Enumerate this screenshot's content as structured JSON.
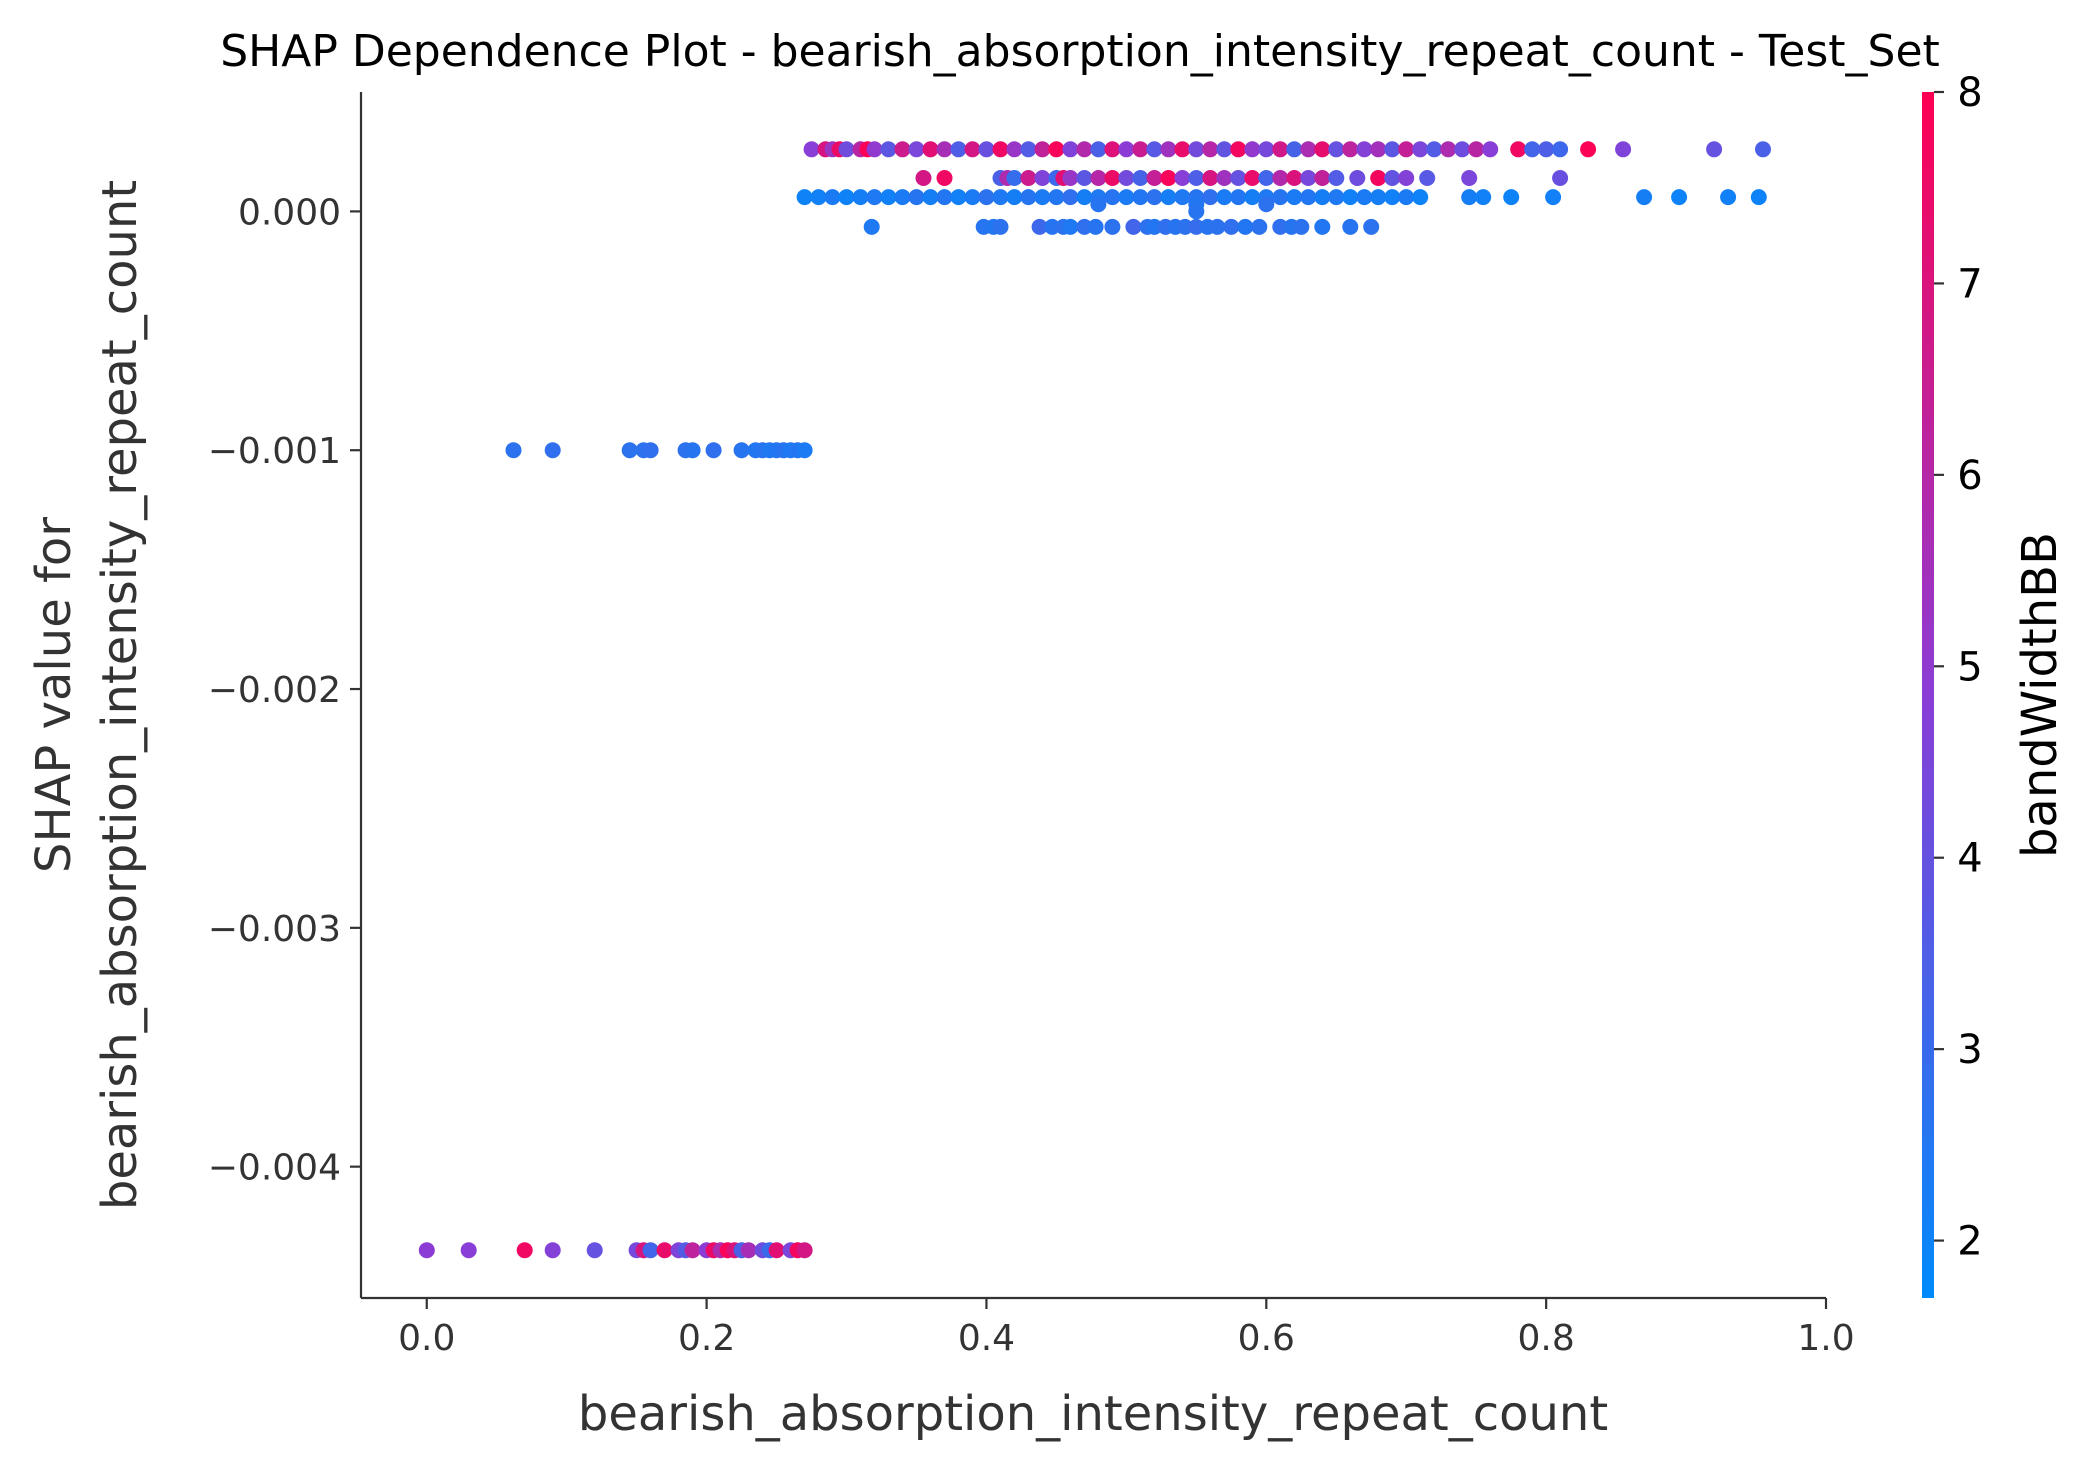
{
  "chart_data": {
    "type": "scatter",
    "title": "SHAP Dependence Plot - bearish_absorption_intensity_repeat_count - Test_Set",
    "xlabel": "bearish_absorption_intensity_repeat_count",
    "ylabel_line1": "SHAP value for",
    "ylabel_line2": "bearish_absorption_intensity_repeat_count",
    "xlim": [
      -0.047,
      1.0
    ],
    "ylim": [
      -0.00455,
      0.0005
    ],
    "x_ticks": [
      0.0,
      0.2,
      0.4,
      0.6,
      0.8,
      1.0
    ],
    "x_tick_labels": [
      "0.0",
      "0.2",
      "0.4",
      "0.6",
      "0.8",
      "1.0"
    ],
    "y_ticks": [
      0.0,
      -0.001,
      -0.002,
      -0.003,
      -0.004
    ],
    "y_tick_labels": [
      "0.000",
      "−0.001",
      "−0.002",
      "−0.003",
      "−0.004"
    ],
    "colorbar": {
      "label": "bandWidthBB",
      "range": [
        1.7,
        8.0
      ],
      "ticks": [
        2,
        3,
        4,
        5,
        6,
        7,
        8
      ],
      "tick_labels": [
        "2",
        "3",
        "4",
        "5",
        "6",
        "7",
        "8"
      ],
      "color_low": "#008afb",
      "color_mid": "#8a3dd6",
      "color_high": "#ff0052"
    },
    "series": [
      {
        "points": [
          [
            0.0,
            -0.00435,
            4.9
          ],
          [
            0.03,
            -0.00435,
            4.8
          ],
          [
            0.07,
            -0.00435,
            7.6
          ],
          [
            0.09,
            -0.00435,
            4.7
          ],
          [
            0.12,
            -0.00435,
            4.0
          ],
          [
            0.15,
            -0.00435,
            4.4
          ],
          [
            0.155,
            -0.00435,
            6.9
          ],
          [
            0.16,
            -0.00435,
            3.2
          ],
          [
            0.17,
            -0.00435,
            7.4
          ],
          [
            0.18,
            -0.00435,
            4.6
          ],
          [
            0.185,
            -0.00435,
            3.6
          ],
          [
            0.19,
            -0.00435,
            6.2
          ],
          [
            0.2,
            -0.00435,
            4.9
          ],
          [
            0.205,
            -0.00435,
            7.5
          ],
          [
            0.21,
            -0.00435,
            5.8
          ],
          [
            0.215,
            -0.00435,
            7.8
          ],
          [
            0.22,
            -0.00435,
            7.0
          ],
          [
            0.225,
            -0.00435,
            3.4
          ],
          [
            0.23,
            -0.00435,
            5.6
          ],
          [
            0.24,
            -0.00435,
            4.2
          ],
          [
            0.245,
            -0.00435,
            3.0
          ],
          [
            0.25,
            -0.00435,
            7.2
          ],
          [
            0.26,
            -0.00435,
            4.5
          ],
          [
            0.265,
            -0.00435,
            7.7
          ],
          [
            0.27,
            -0.00435,
            6.8
          ],
          [
            0.062,
            -0.001,
            2.7
          ],
          [
            0.09,
            -0.001,
            2.8
          ],
          [
            0.145,
            -0.001,
            2.7
          ],
          [
            0.155,
            -0.001,
            2.7
          ],
          [
            0.16,
            -0.001,
            2.8
          ],
          [
            0.185,
            -0.001,
            2.7
          ],
          [
            0.19,
            -0.001,
            2.6
          ],
          [
            0.205,
            -0.001,
            2.8
          ],
          [
            0.225,
            -0.001,
            2.6
          ],
          [
            0.235,
            -0.001,
            2.5
          ],
          [
            0.24,
            -0.001,
            2.6
          ],
          [
            0.245,
            -0.001,
            2.4
          ],
          [
            0.25,
            -0.001,
            2.5
          ],
          [
            0.255,
            -0.001,
            2.6
          ],
          [
            0.26,
            -0.001,
            2.4
          ],
          [
            0.265,
            -0.001,
            2.5
          ],
          [
            0.27,
            -0.001,
            2.3
          ],
          [
            0.318,
            -6.5e-05,
            2.4
          ],
          [
            0.398,
            -6.5e-05,
            2.6
          ],
          [
            0.405,
            -6.5e-05,
            2.5
          ],
          [
            0.41,
            -6.5e-05,
            2.7
          ],
          [
            0.438,
            -6.5e-05,
            3.1
          ],
          [
            0.447,
            -6.5e-05,
            2.6
          ],
          [
            0.455,
            -6.5e-05,
            2.7
          ],
          [
            0.46,
            -6.5e-05,
            2.4
          ],
          [
            0.47,
            -6.5e-05,
            2.8
          ],
          [
            0.478,
            -6.5e-05,
            2.6
          ],
          [
            0.49,
            -6.5e-05,
            2.7
          ],
          [
            0.505,
            -6.5e-05,
            3.2
          ],
          [
            0.515,
            -6.5e-05,
            2.7
          ],
          [
            0.52,
            -6.5e-05,
            2.5
          ],
          [
            0.528,
            -6.5e-05,
            2.8
          ],
          [
            0.535,
            -6.5e-05,
            2.6
          ],
          [
            0.542,
            -6.5e-05,
            2.7
          ],
          [
            0.55,
            -6.5e-05,
            2.9
          ],
          [
            0.558,
            -6.5e-05,
            2.6
          ],
          [
            0.565,
            -6.5e-05,
            2.7
          ],
          [
            0.575,
            -6.5e-05,
            2.8
          ],
          [
            0.585,
            -6.5e-05,
            2.5
          ],
          [
            0.595,
            -6.5e-05,
            2.7
          ],
          [
            0.61,
            -6.5e-05,
            2.8
          ],
          [
            0.618,
            -6.5e-05,
            2.6
          ],
          [
            0.625,
            -6.5e-05,
            2.7
          ],
          [
            0.64,
            -6.5e-05,
            2.5
          ],
          [
            0.66,
            -6.5e-05,
            2.6
          ],
          [
            0.675,
            -6.5e-05,
            2.7
          ],
          [
            0.27,
            6e-05,
            2.0
          ],
          [
            0.28,
            6e-05,
            2.1
          ],
          [
            0.29,
            6e-05,
            2.3
          ],
          [
            0.3,
            6e-05,
            2.0
          ],
          [
            0.31,
            6e-05,
            2.2
          ],
          [
            0.32,
            6e-05,
            2.4
          ],
          [
            0.33,
            6e-05,
            2.1
          ],
          [
            0.34,
            6e-05,
            2.3
          ],
          [
            0.35,
            6e-05,
            2.6
          ],
          [
            0.36,
            6e-05,
            2.2
          ],
          [
            0.37,
            6e-05,
            2.5
          ],
          [
            0.38,
            6e-05,
            2.1
          ],
          [
            0.39,
            6e-05,
            2.3
          ],
          [
            0.4,
            6e-05,
            2.7
          ],
          [
            0.41,
            6e-05,
            2.4
          ],
          [
            0.42,
            6e-05,
            2.2
          ],
          [
            0.43,
            6e-05,
            2.6
          ],
          [
            0.44,
            6e-05,
            2.3
          ],
          [
            0.45,
            6e-05,
            2.5
          ],
          [
            0.46,
            6e-05,
            2.8
          ],
          [
            0.47,
            6e-05,
            2.2
          ],
          [
            0.48,
            6e-05,
            2.4
          ],
          [
            0.49,
            6e-05,
            2.6
          ],
          [
            0.5,
            6e-05,
            2.3
          ],
          [
            0.51,
            6e-05,
            2.5
          ],
          [
            0.52,
            6e-05,
            2.7
          ],
          [
            0.53,
            6e-05,
            2.2
          ],
          [
            0.54,
            6e-05,
            2.4
          ],
          [
            0.55,
            6e-05,
            2.6
          ],
          [
            0.56,
            6e-05,
            2.8
          ],
          [
            0.57,
            6e-05,
            2.3
          ],
          [
            0.58,
            6e-05,
            2.5
          ],
          [
            0.59,
            6e-05,
            2.2
          ],
          [
            0.6,
            6e-05,
            2.4
          ],
          [
            0.61,
            6e-05,
            2.6
          ],
          [
            0.62,
            6e-05,
            2.3
          ],
          [
            0.63,
            6e-05,
            2.5
          ],
          [
            0.64,
            6e-05,
            2.2
          ],
          [
            0.65,
            6e-05,
            2.4
          ],
          [
            0.66,
            6e-05,
            2.1
          ],
          [
            0.67,
            6e-05,
            2.3
          ],
          [
            0.68,
            6e-05,
            2.2
          ],
          [
            0.69,
            6e-05,
            2.1
          ],
          [
            0.7,
            6e-05,
            2.3
          ],
          [
            0.71,
            6e-05,
            2.0
          ],
          [
            0.745,
            6e-05,
            2.2
          ],
          [
            0.755,
            6e-05,
            2.1
          ],
          [
            0.775,
            6e-05,
            2.0
          ],
          [
            0.805,
            6e-05,
            2.1
          ],
          [
            0.87,
            6e-05,
            2.2
          ],
          [
            0.895,
            6e-05,
            2.0
          ],
          [
            0.93,
            6e-05,
            2.1
          ],
          [
            0.952,
            6e-05,
            2.0
          ],
          [
            0.48,
            3e-05,
            2.6
          ],
          [
            0.55,
            3e-05,
            2.5
          ],
          [
            0.6,
            3e-05,
            2.7
          ],
          [
            0.55,
            0.0,
            2.6
          ],
          [
            0.355,
            0.00014,
            6.8
          ],
          [
            0.37,
            0.00014,
            7.6
          ],
          [
            0.41,
            0.00014,
            3.4
          ],
          [
            0.415,
            0.00014,
            5.8
          ],
          [
            0.42,
            0.00014,
            2.9
          ],
          [
            0.43,
            0.00014,
            6.6
          ],
          [
            0.44,
            0.00014,
            4.6
          ],
          [
            0.45,
            0.00014,
            3.1
          ],
          [
            0.455,
            0.00014,
            7.2
          ],
          [
            0.46,
            0.00014,
            5.2
          ],
          [
            0.47,
            0.00014,
            3.8
          ],
          [
            0.48,
            0.00014,
            6.0
          ],
          [
            0.49,
            0.00014,
            7.5
          ],
          [
            0.5,
            0.00014,
            4.3
          ],
          [
            0.51,
            0.00014,
            3.3
          ],
          [
            0.52,
            0.00014,
            6.4
          ],
          [
            0.53,
            0.00014,
            7.8
          ],
          [
            0.54,
            0.00014,
            4.8
          ],
          [
            0.55,
            0.00014,
            3.5
          ],
          [
            0.56,
            0.00014,
            6.9
          ],
          [
            0.57,
            0.00014,
            5.4
          ],
          [
            0.58,
            0.00014,
            4.0
          ],
          [
            0.59,
            0.00014,
            7.4
          ],
          [
            0.6,
            0.00014,
            3.2
          ],
          [
            0.61,
            0.00014,
            5.9
          ],
          [
            0.62,
            0.00014,
            7.0
          ],
          [
            0.63,
            0.00014,
            4.4
          ],
          [
            0.64,
            0.00014,
            6.3
          ],
          [
            0.65,
            0.00014,
            3.6
          ],
          [
            0.665,
            0.00014,
            4.2
          ],
          [
            0.68,
            0.00014,
            7.7
          ],
          [
            0.69,
            0.00014,
            3.9
          ],
          [
            0.7,
            0.00014,
            4.7
          ],
          [
            0.715,
            0.00014,
            3.7
          ],
          [
            0.745,
            0.00014,
            4.5
          ],
          [
            0.81,
            0.00014,
            4.1
          ],
          [
            0.275,
            0.00026,
            4.8
          ],
          [
            0.285,
            0.00026,
            6.9
          ],
          [
            0.29,
            0.00026,
            5.3
          ],
          [
            0.295,
            0.00026,
            7.5
          ],
          [
            0.3,
            0.00026,
            4.2
          ],
          [
            0.31,
            0.00026,
            6.1
          ],
          [
            0.315,
            0.00026,
            7.9
          ],
          [
            0.32,
            0.00026,
            5.0
          ],
          [
            0.33,
            0.00026,
            3.8
          ],
          [
            0.34,
            0.00026,
            6.6
          ],
          [
            0.35,
            0.00026,
            4.5
          ],
          [
            0.36,
            0.00026,
            7.2
          ],
          [
            0.37,
            0.00026,
            5.6
          ],
          [
            0.38,
            0.00026,
            3.5
          ],
          [
            0.39,
            0.00026,
            6.8
          ],
          [
            0.4,
            0.00026,
            4.1
          ],
          [
            0.41,
            0.00026,
            7.6
          ],
          [
            0.42,
            0.00026,
            5.2
          ],
          [
            0.43,
            0.00026,
            3.6
          ],
          [
            0.44,
            0.00026,
            6.3
          ],
          [
            0.45,
            0.00026,
            7.8
          ],
          [
            0.46,
            0.00026,
            4.6
          ],
          [
            0.47,
            0.00026,
            5.9
          ],
          [
            0.48,
            0.00026,
            3.4
          ],
          [
            0.49,
            0.00026,
            7.1
          ],
          [
            0.5,
            0.00026,
            4.9
          ],
          [
            0.51,
            0.00026,
            6.5
          ],
          [
            0.52,
            0.00026,
            3.7
          ],
          [
            0.53,
            0.00026,
            5.4
          ],
          [
            0.54,
            0.00026,
            7.4
          ],
          [
            0.55,
            0.00026,
            4.3
          ],
          [
            0.56,
            0.00026,
            6.0
          ],
          [
            0.57,
            0.00026,
            3.9
          ],
          [
            0.58,
            0.00026,
            7.7
          ],
          [
            0.59,
            0.00026,
            5.1
          ],
          [
            0.6,
            0.00026,
            4.4
          ],
          [
            0.61,
            0.00026,
            6.7
          ],
          [
            0.62,
            0.00026,
            3.3
          ],
          [
            0.63,
            0.00026,
            5.7
          ],
          [
            0.64,
            0.00026,
            7.3
          ],
          [
            0.65,
            0.00026,
            4.0
          ],
          [
            0.66,
            0.00026,
            6.2
          ],
          [
            0.67,
            0.00026,
            4.7
          ],
          [
            0.68,
            0.00026,
            5.5
          ],
          [
            0.69,
            0.00026,
            3.8
          ],
          [
            0.7,
            0.00026,
            6.4
          ],
          [
            0.71,
            0.00026,
            4.5
          ],
          [
            0.72,
            0.00026,
            3.6
          ],
          [
            0.73,
            0.00026,
            5.8
          ],
          [
            0.74,
            0.00026,
            4.2
          ],
          [
            0.75,
            0.00026,
            6.1
          ],
          [
            0.76,
            0.00026,
            4.8
          ],
          [
            0.78,
            0.00026,
            7.6
          ],
          [
            0.79,
            0.00026,
            3.2
          ],
          [
            0.8,
            0.00026,
            3.5
          ],
          [
            0.81,
            0.00026,
            3.1
          ],
          [
            0.83,
            0.00026,
            7.9
          ],
          [
            0.855,
            0.00026,
            4.6
          ],
          [
            0.92,
            0.00026,
            4.0
          ],
          [
            0.955,
            0.00026,
            3.4
          ]
        ]
      }
    ]
  }
}
